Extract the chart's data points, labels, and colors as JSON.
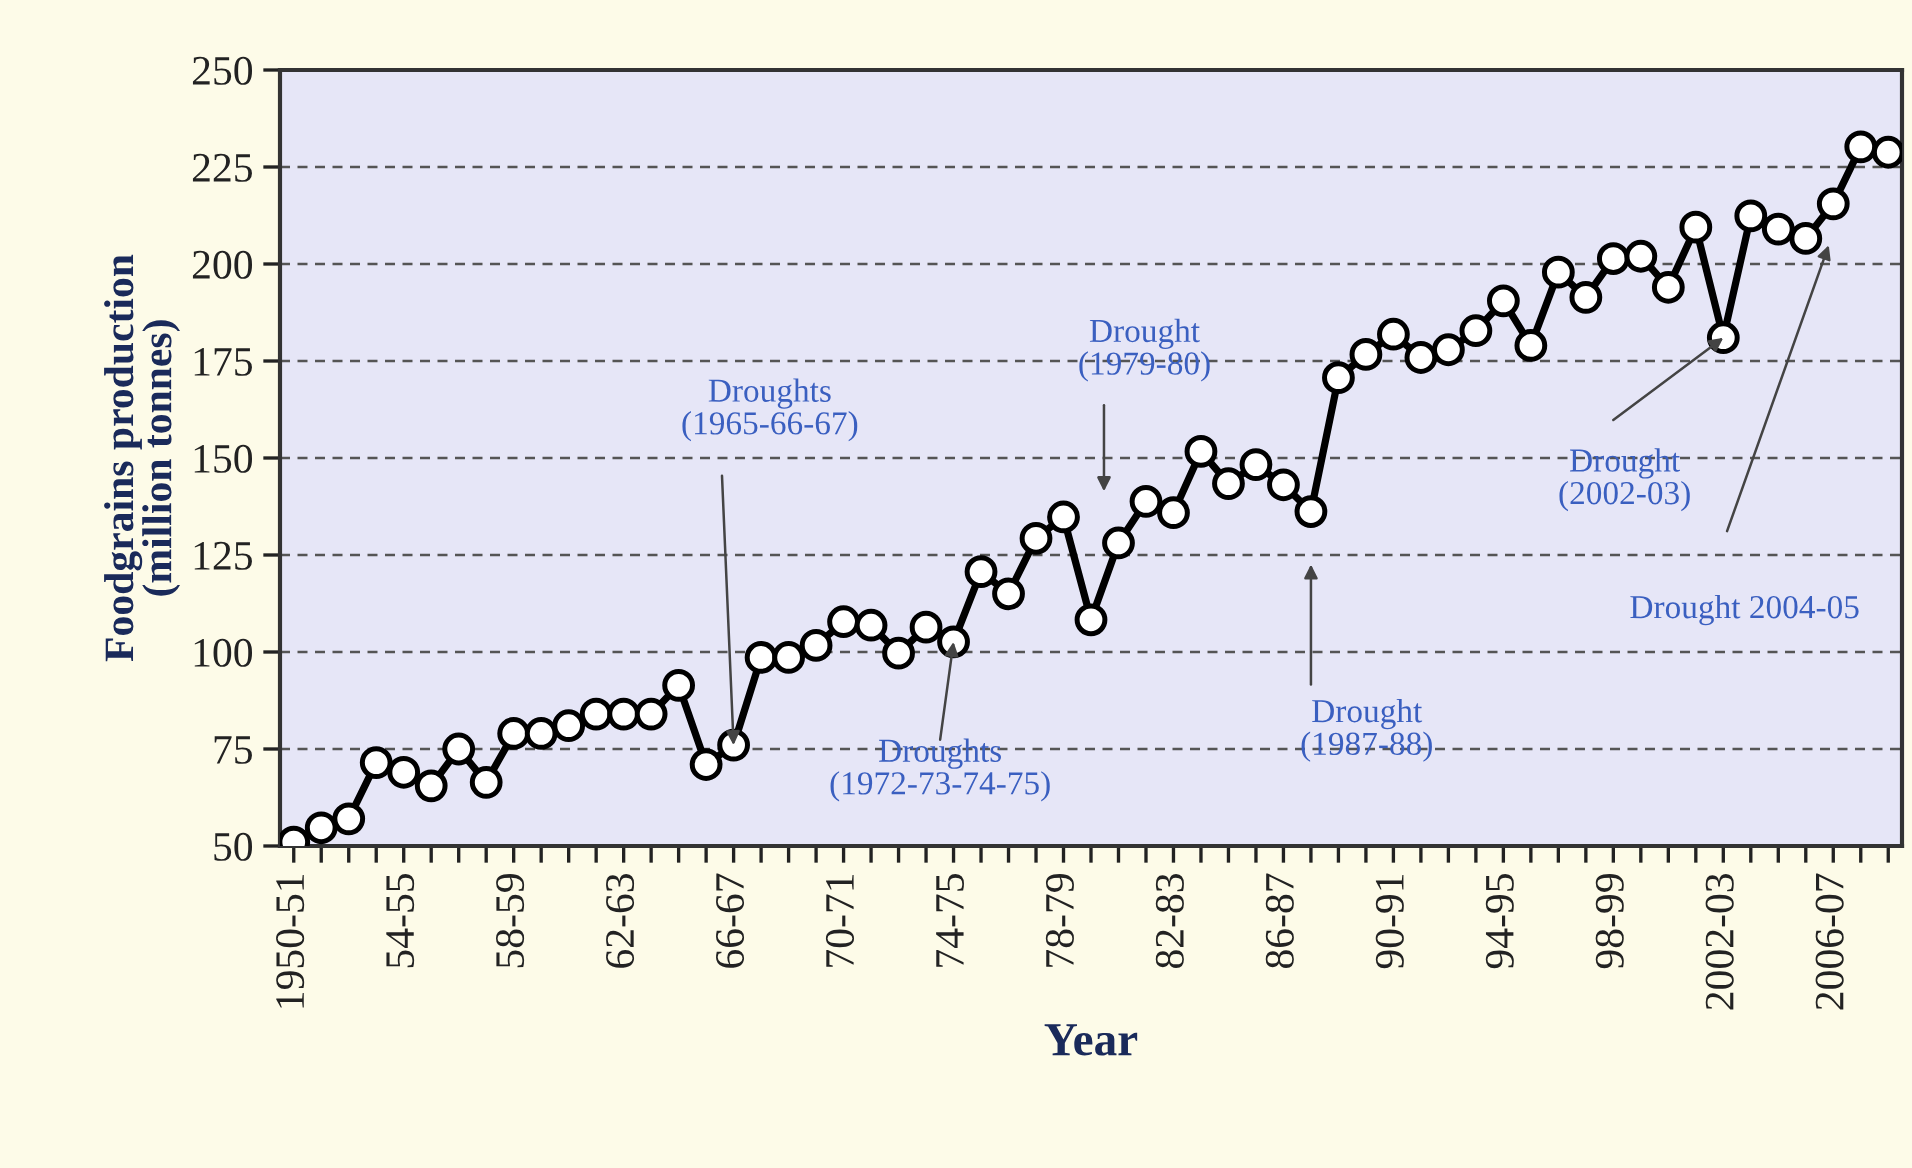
{
  "chart_data": {
    "type": "line",
    "xlabel": "Year",
    "ylabel": "Foodgrains production\n(million tonnes)",
    "categories": [
      "1950-51",
      null,
      null,
      null,
      "54-55",
      null,
      null,
      null,
      "58-59",
      null,
      null,
      null,
      "62-63",
      null,
      null,
      null,
      "66-67",
      null,
      null,
      null,
      "70-71",
      null,
      null,
      null,
      "74-75",
      null,
      null,
      null,
      "78-79",
      null,
      null,
      null,
      "82-83",
      null,
      null,
      null,
      "86-87",
      null,
      null,
      null,
      "90-91",
      null,
      null,
      null,
      "94-95",
      null,
      null,
      null,
      "98-99",
      null,
      null,
      null,
      "2002-03",
      null,
      null,
      null,
      "2006-07",
      null,
      null
    ],
    "series": [
      {
        "color": "#000000",
        "values": [
          51,
          54.7,
          57,
          71.5,
          69,
          65.5,
          75,
          66.4,
          79,
          79,
          81,
          84,
          84,
          84,
          91.4,
          71,
          76,
          98.6,
          98.6,
          101.7,
          107.8,
          106.9,
          99.7,
          106.4,
          102.6,
          120.7,
          115,
          129.3,
          134.8,
          108.3,
          128.1,
          138.8,
          135.9,
          151.7,
          143.4,
          148.3,
          143.1,
          136.2,
          170.7,
          176.7,
          181.9,
          175.9,
          177.9,
          182.8,
          190.5,
          179,
          197.9,
          191.4,
          201.4,
          202,
          194,
          209.5,
          181,
          212.4,
          209,
          206.6,
          215.5,
          230.2,
          228.8
        ]
      }
    ],
    "ylim": [
      50,
      250
    ],
    "yticks": [
      50,
      75,
      100,
      125,
      150,
      175,
      200,
      225,
      250
    ],
    "grid": "y",
    "marker": "circle",
    "line_style": "solid",
    "legend": false,
    "annotations": [
      {
        "text": "Droughts\n(1965-66-67)",
        "x": "66-67",
        "y": 76
      },
      {
        "text": "Droughts\n(1972-73-74-75)",
        "x": "74-75",
        "y": 102.6
      },
      "Drought\n(1979-80)",
      "Drought\n(1987-88)",
      {
        "text": "Drought\n(2002-03)",
        "x": "2002-03",
        "y": 181
      },
      "Drought 2004-05"
    ]
  }
}
